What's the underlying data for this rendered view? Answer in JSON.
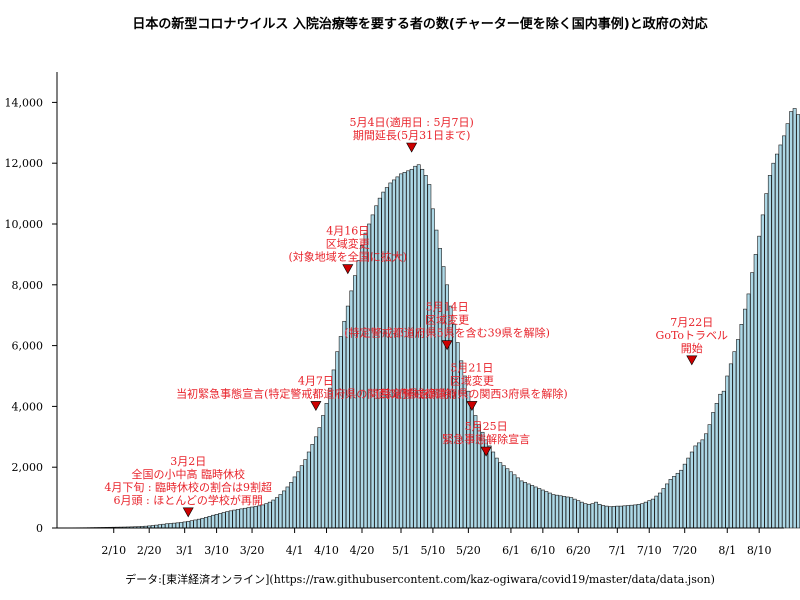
{
  "chart_data": {
    "type": "bar",
    "title": "日本の新型コロナウイルス 入院治療等を要する者の数(チャーター便を除く国内事例)と政府の対応",
    "source": "データ:[東洋経済オンライン](https://raw.githubusercontent.com/kaz-ogiwara/covid19/master/data/data.json)",
    "xlabel": "",
    "ylabel": "",
    "ylim": [
      0,
      15000
    ],
    "xrange": [
      "2020-01-25",
      "2020-08-17"
    ],
    "grid": false,
    "colors": {
      "bar_fill": "#add8e6",
      "bar_stroke": "#1a1a1a",
      "annotation_text": "#e8232b",
      "marker_fill": "#cc0000",
      "axis": "#000000"
    },
    "y_ticks": [
      {
        "value": 0,
        "label": "0"
      },
      {
        "value": 2000,
        "label": "2,000"
      },
      {
        "value": 4000,
        "label": "4,000"
      },
      {
        "value": 6000,
        "label": "6,000"
      },
      {
        "value": 8000,
        "label": "8,000"
      },
      {
        "value": 10000,
        "label": "10,000"
      },
      {
        "value": 12000,
        "label": "12,000"
      },
      {
        "value": 14000,
        "label": "14,000"
      }
    ],
    "x_ticks": [
      {
        "date": "2020-02-10",
        "label": "2/10"
      },
      {
        "date": "2020-02-20",
        "label": "2/20"
      },
      {
        "date": "2020-03-01",
        "label": "3/1"
      },
      {
        "date": "2020-03-10",
        "label": "3/10"
      },
      {
        "date": "2020-03-20",
        "label": "3/20"
      },
      {
        "date": "2020-04-01",
        "label": "4/1"
      },
      {
        "date": "2020-04-10",
        "label": "4/10"
      },
      {
        "date": "2020-04-20",
        "label": "4/20"
      },
      {
        "date": "2020-05-01",
        "label": "5/1"
      },
      {
        "date": "2020-05-10",
        "label": "5/10"
      },
      {
        "date": "2020-05-20",
        "label": "5/20"
      },
      {
        "date": "2020-06-01",
        "label": "6/1"
      },
      {
        "date": "2020-06-10",
        "label": "6/10"
      },
      {
        "date": "2020-06-20",
        "label": "6/20"
      },
      {
        "date": "2020-07-01",
        "label": "7/1"
      },
      {
        "date": "2020-07-10",
        "label": "7/10"
      },
      {
        "date": "2020-07-20",
        "label": "7/20"
      },
      {
        "date": "2020-08-01",
        "label": "8/1"
      },
      {
        "date": "2020-08-10",
        "label": "8/10"
      }
    ],
    "series": [
      {
        "start_date": "2020-01-26",
        "values": [
          2,
          3,
          4,
          5,
          7,
          8,
          9,
          10,
          12,
          14,
          16,
          18,
          20,
          22,
          24,
          26,
          28,
          30,
          32,
          35,
          38,
          42,
          46,
          52,
          60,
          70,
          82,
          95,
          110,
          125,
          140,
          150,
          160,
          170,
          185,
          200,
          220,
          240,
          265,
          290,
          320,
          350,
          385,
          420,
          450,
          480,
          510,
          540,
          565,
          590,
          610,
          630,
          650,
          670,
          690,
          710,
          730,
          760,
          800,
          850,
          920,
          1000,
          1100,
          1220,
          1350,
          1500,
          1680,
          1850,
          2050,
          2250,
          2500,
          2750,
          3000,
          3300,
          3700,
          4100,
          4600,
          5200,
          5800,
          6300,
          6800,
          7300,
          7800,
          8300,
          8800,
          9300,
          9700,
          10000,
          10300,
          10600,
          10850,
          11050,
          11200,
          11350,
          11450,
          11550,
          11650,
          11700,
          11750,
          11800,
          11900,
          11950,
          11800,
          11600,
          11300,
          10500,
          9800,
          9200,
          8600,
          8000,
          7300,
          6700,
          6100,
          5500,
          5000,
          4500,
          4100,
          3700,
          3400,
          3150,
          2900,
          2700,
          2500,
          2300,
          2150,
          2050,
          1950,
          1850,
          1750,
          1650,
          1550,
          1500,
          1450,
          1400,
          1350,
          1300,
          1250,
          1200,
          1150,
          1100,
          1080,
          1060,
          1040,
          1020,
          1000,
          950,
          900,
          850,
          800,
          780,
          800,
          850,
          780,
          740,
          720,
          700,
          710,
          720,
          720,
          730,
          740,
          750,
          760,
          780,
          800,
          850,
          900,
          950,
          1050,
          1150,
          1300,
          1450,
          1600,
          1700,
          1800,
          1900,
          2100,
          2300,
          2500,
          2700,
          2800,
          2900,
          3100,
          3400,
          3800,
          4100,
          4400,
          4500,
          5000,
          5400,
          5800,
          6200,
          6700,
          7200,
          7700,
          8400,
          9000,
          9600,
          10300,
          11000,
          11600,
          12000,
          12300,
          12600,
          12900,
          13300,
          13700,
          13800,
          13600,
          13400,
          13100,
          13050,
          13100,
          13150,
          13050
        ]
      }
    ],
    "annotations": [
      {
        "date": "2020-03-02",
        "marker_value": 500,
        "lines": [
          "3月2日",
          "全国の小中高 臨時休校",
          "4月下旬 : 臨時休校の割合は9割超",
          "6月頭 : ほとんどの学校が再開"
        ]
      },
      {
        "date": "2020-04-07",
        "marker_value": 4000,
        "lines": [
          "4月7日",
          "当初緊急事態宣言(特定警戒都道府県の関西3府県を解除)"
        ]
      },
      {
        "date": "2020-04-16",
        "marker_value": 8500,
        "lines": [
          "4月16日",
          "区域変更",
          "(対象地域を全国に拡大)"
        ]
      },
      {
        "date": "2020-05-04",
        "marker_value": 12500,
        "lines": [
          "5月4日(適用日 : 5月7日)",
          "期間延長(5月31日まで)"
        ]
      },
      {
        "date": "2020-05-14",
        "marker_value": 6000,
        "lines": [
          "5月14日",
          "区域変更",
          "(特定警戒都道府県5県を含む39県を解除)"
        ]
      },
      {
        "date": "2020-05-21",
        "marker_value": 4000,
        "lines": [
          "5月21日",
          "区域変更",
          "(特定警戒都道府県の関西3府県を解除)"
        ]
      },
      {
        "date": "2020-05-25",
        "marker_value": 2500,
        "lines": [
          "5月25日",
          "緊急事態解除宣言"
        ]
      },
      {
        "date": "2020-07-22",
        "marker_value": 5500,
        "lines": [
          "7月22日",
          "GoToトラベル",
          "開始"
        ]
      }
    ]
  }
}
